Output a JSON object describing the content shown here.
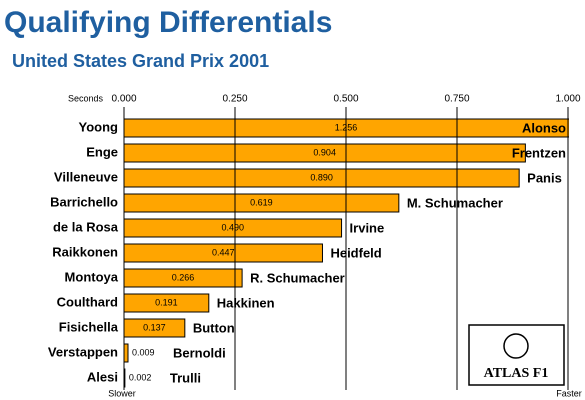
{
  "chart_data": {
    "type": "bar",
    "orientation": "horizontal",
    "title": "Qualifying Differentials",
    "subtitle": "United States Grand Prix 2001",
    "x_axis_label": "Seconds",
    "left_end_label": "Slower",
    "right_end_label": "Faster",
    "logo": "ATLAS F1",
    "categories": [
      "Yoong",
      "Enge",
      "Villeneuve",
      "Barrichello",
      "de la Rosa",
      "Raikkonen",
      "Montoya",
      "Coulthard",
      "Fisichella",
      "Verstappen",
      "Alesi"
    ],
    "faster_drivers": [
      "Alonso",
      "Frentzen",
      "Panis",
      "M. Schumacher",
      "Irvine",
      "Heidfeld",
      "R. Schumacher",
      "Hakkinen",
      "Button",
      "Bernoldi",
      "Trulli"
    ],
    "values": [
      1.256,
      0.904,
      0.89,
      0.619,
      0.49,
      0.447,
      0.266,
      0.191,
      0.137,
      0.009,
      0.002
    ],
    "value_labels": [
      "1.256",
      "0.904",
      "0.890",
      "0.619",
      "0.490",
      "0.447",
      "0.266",
      "0.191",
      "0.137",
      "0.009",
      "0.002"
    ],
    "color": "#ffa500",
    "xlim": [
      0,
      1
    ],
    "xticks": [
      {
        "value": 0,
        "label": "0.000"
      },
      {
        "value": 0.25,
        "label": "0.250"
      },
      {
        "value": 0.5,
        "label": "0.500"
      },
      {
        "value": 0.75,
        "label": "0.750"
      },
      {
        "value": 1,
        "label": "1.000"
      }
    ],
    "grid": true
  }
}
